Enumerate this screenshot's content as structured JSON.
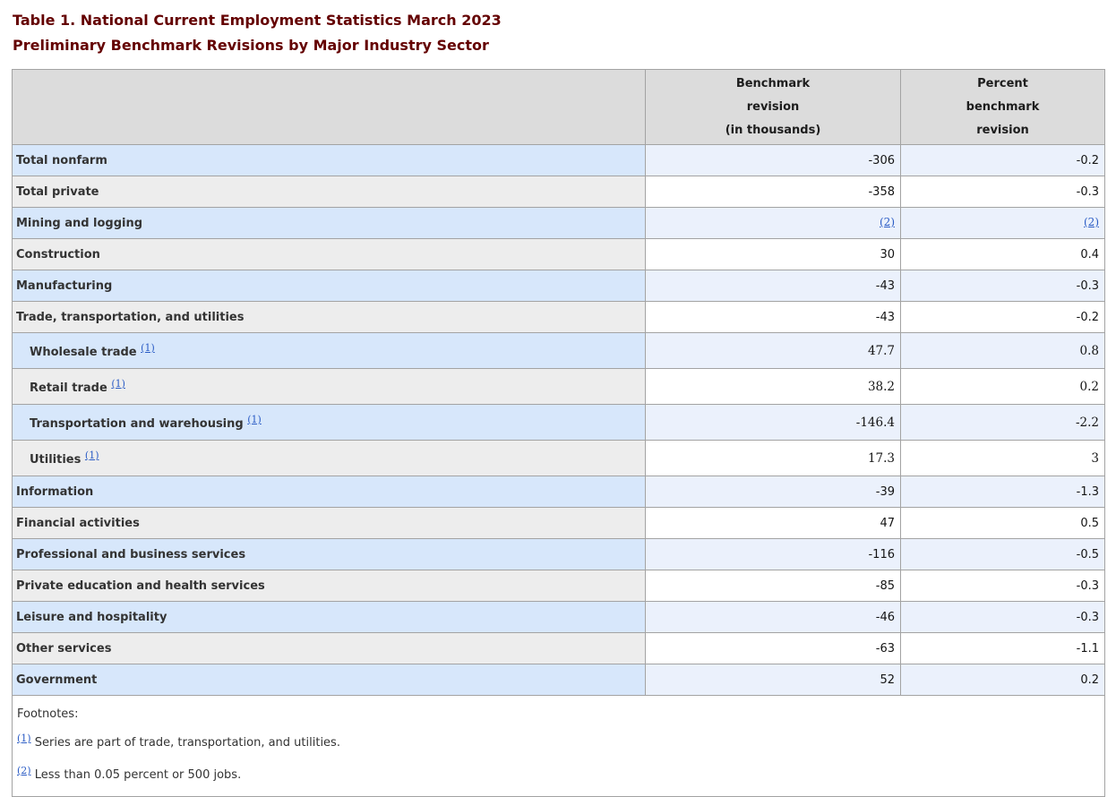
{
  "page": {
    "title_line1": "Table 1. National Current Employment Statistics March 2023",
    "title_line2": "Preliminary Benchmark Revisions by Major Industry Sector"
  },
  "colors": {
    "title_maroon": "#640000",
    "link_blue": "#2b5cc5",
    "header_gray": "#dcdcdc",
    "row_blue_label": "#d7e7fb",
    "row_blue_value": "#ebf1fc",
    "row_gray_label": "#ededed",
    "row_gray_value": "#ffffff",
    "border_gray": "#a3a3a3"
  },
  "table": {
    "headers": [
      {
        "key": "stub",
        "lines": []
      },
      {
        "key": "benchmark_revision",
        "lines": [
          "Benchmark",
          "revision",
          "(in thousands)"
        ]
      },
      {
        "key": "percent_benchmark_revision",
        "lines": [
          "Percent",
          "benchmark",
          "revision"
        ]
      }
    ],
    "rows": [
      {
        "label": "Total nonfarm",
        "indent": false,
        "sup": null,
        "benchmark": "-306",
        "percent": "-0.2",
        "cells_are_links": false,
        "serif": false,
        "tall": false
      },
      {
        "label": "Total private",
        "indent": false,
        "sup": null,
        "benchmark": "-358",
        "percent": "-0.3",
        "cells_are_links": false,
        "serif": false,
        "tall": false
      },
      {
        "label": "Mining and logging",
        "indent": false,
        "sup": null,
        "benchmark": "(2)",
        "percent": "(2)",
        "cells_are_links": true,
        "serif": false,
        "tall": false
      },
      {
        "label": "Construction",
        "indent": false,
        "sup": null,
        "benchmark": "30",
        "percent": "0.4",
        "cells_are_links": false,
        "serif": false,
        "tall": false
      },
      {
        "label": "Manufacturing",
        "indent": false,
        "sup": null,
        "benchmark": "-43",
        "percent": "-0.3",
        "cells_are_links": false,
        "serif": false,
        "tall": false
      },
      {
        "label": "Trade, transportation, and utilities",
        "indent": false,
        "sup": null,
        "benchmark": "-43",
        "percent": "-0.2",
        "cells_are_links": false,
        "serif": false,
        "tall": false
      },
      {
        "label": "Wholesale trade",
        "indent": true,
        "sup": "(1)",
        "benchmark": "47.7",
        "percent": "0.8",
        "cells_are_links": false,
        "serif": true,
        "tall": true
      },
      {
        "label": "Retail trade",
        "indent": true,
        "sup": "(1)",
        "benchmark": "38.2",
        "percent": "0.2",
        "cells_are_links": false,
        "serif": true,
        "tall": true
      },
      {
        "label": "Transportation and warehousing",
        "indent": true,
        "sup": "(1)",
        "benchmark": "-146.4",
        "percent": "-2.2",
        "cells_are_links": false,
        "serif": true,
        "tall": true
      },
      {
        "label": "Utilities",
        "indent": true,
        "sup": "(1)",
        "benchmark": "17.3",
        "percent": "3",
        "cells_are_links": false,
        "serif": true,
        "tall": true
      },
      {
        "label": "Information",
        "indent": false,
        "sup": null,
        "benchmark": "-39",
        "percent": "-1.3",
        "cells_are_links": false,
        "serif": false,
        "tall": false
      },
      {
        "label": "Financial activities",
        "indent": false,
        "sup": null,
        "benchmark": "47",
        "percent": "0.5",
        "cells_are_links": false,
        "serif": false,
        "tall": false
      },
      {
        "label": "Professional and business services",
        "indent": false,
        "sup": null,
        "benchmark": "-116",
        "percent": "-0.5",
        "cells_are_links": false,
        "serif": false,
        "tall": false
      },
      {
        "label": "Private education and health services",
        "indent": false,
        "sup": null,
        "benchmark": "-85",
        "percent": "-0.3",
        "cells_are_links": false,
        "serif": false,
        "tall": false
      },
      {
        "label": "Leisure and hospitality",
        "indent": false,
        "sup": null,
        "benchmark": "-46",
        "percent": "-0.3",
        "cells_are_links": false,
        "serif": false,
        "tall": false
      },
      {
        "label": "Other services",
        "indent": false,
        "sup": null,
        "benchmark": "-63",
        "percent": "-1.1",
        "cells_are_links": false,
        "serif": false,
        "tall": false
      },
      {
        "label": "Government",
        "indent": false,
        "sup": null,
        "benchmark": "52",
        "percent": "0.2",
        "cells_are_links": false,
        "serif": false,
        "tall": false
      }
    ],
    "footnotes": {
      "heading": "Footnotes:",
      "items": [
        {
          "marker": "(1)",
          "text": "Series are part of trade, transportation, and utilities."
        },
        {
          "marker": "(2)",
          "text": "Less than 0.05 percent or 500 jobs."
        }
      ]
    }
  }
}
